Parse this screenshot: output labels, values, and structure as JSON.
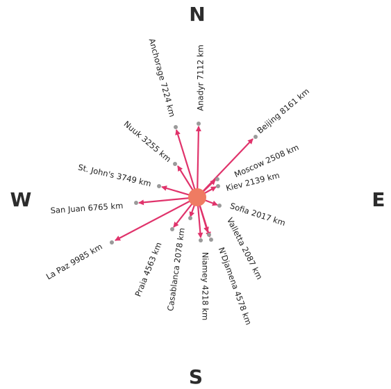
{
  "compass": {
    "north": "N",
    "east": "E",
    "south": "S",
    "west": "W"
  },
  "colors": {
    "arrow": "#e0336b",
    "hub": "#ef7b62",
    "endpoint": "#9a9a9a",
    "text": "#1e1e1e"
  },
  "destinations": [
    {
      "label": "Anadyr 7112 km"
    },
    {
      "label": "Anchorage 7224 km"
    },
    {
      "label": "Beijing 8161 km"
    },
    {
      "label": "Nuuk 3255 km"
    },
    {
      "label": "Moscow 2508 km"
    },
    {
      "label": "Kiev 2139 km"
    },
    {
      "label": "St. John's 3749 km"
    },
    {
      "label": "Sofia 2017 km"
    },
    {
      "label": "San Juan 6765 km"
    },
    {
      "label": "Valletta 2087 km"
    },
    {
      "label": "La Paz 9985 km"
    },
    {
      "label": "N'Djamena 4578 km"
    },
    {
      "label": "Praia 4563 km"
    },
    {
      "label": "Niamey 4218 km"
    },
    {
      "label": "Casablanca 2078 km"
    }
  ]
}
